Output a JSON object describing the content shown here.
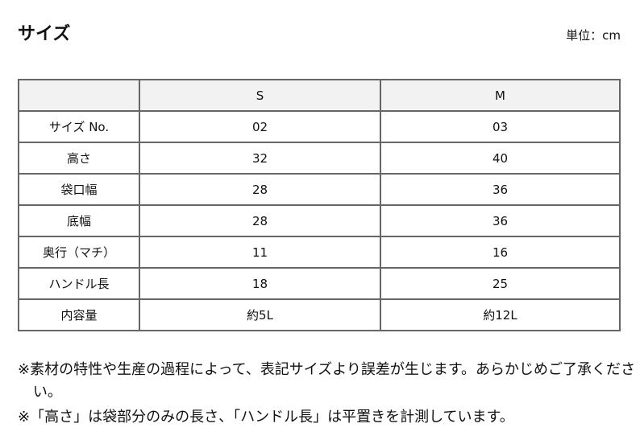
{
  "title": "サイズ",
  "unit": "単位：cm",
  "table": {
    "headers": [
      "",
      "S",
      "M"
    ],
    "rows": [
      [
        "サイズ No.",
        "02",
        "03"
      ],
      [
        "高さ",
        "32",
        "40"
      ],
      [
        "袋口幅",
        "28",
        "36"
      ],
      [
        "底幅",
        "28",
        "36"
      ],
      [
        "奥行（マチ）",
        "11",
        "16"
      ],
      [
        "ハンドル長",
        "18",
        "25"
      ],
      [
        "内容量",
        "約5L",
        "約12L"
      ]
    ]
  },
  "notes": [
    "※素材の特性や生産の過程によって、表記サイズより誤差が生じます。あらかじめご了承ください。",
    "※「高さ」は袋部分のみの長さ、「ハンドル長」は平置きを計測しています。"
  ]
}
